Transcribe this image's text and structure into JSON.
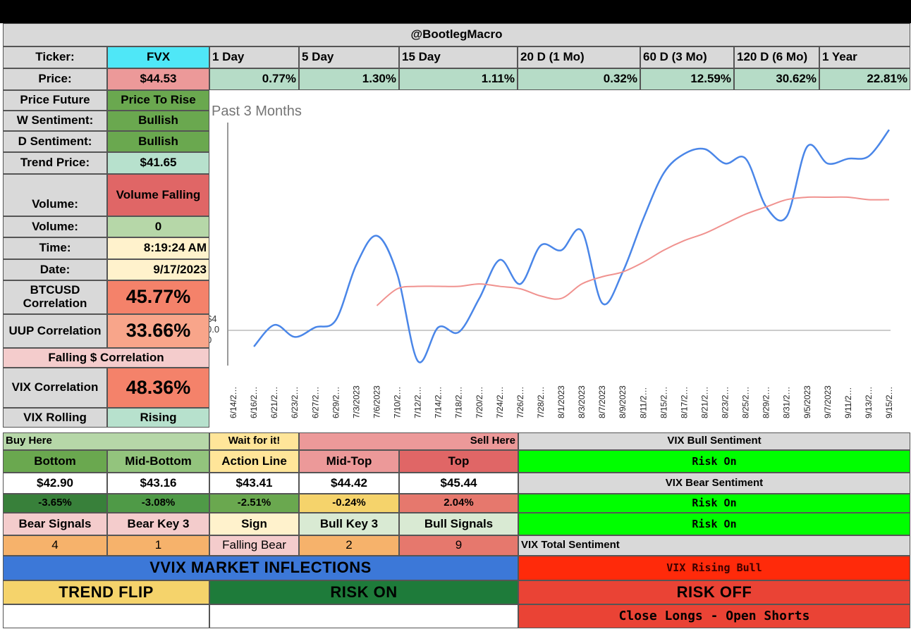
{
  "colors": {
    "grey": "#d9d9d9",
    "cyan": "#4fe7f7",
    "pink": "#ec9999",
    "lightgreen": "#b6dcc7",
    "green": "#6aa84f",
    "darkgreen": "#1e7b3a",
    "midgreen": "#38803a",
    "red": "#e06666",
    "salmon": "#f4826a",
    "lightsalmon": "#f8a58a",
    "lightpink": "#f4cccc",
    "mint": "#b7e1cd",
    "yellow": "#ffe599",
    "orange": "#f6b26b",
    "gold": "#f5d36b",
    "blue": "#3c78d8",
    "brightgreen": "#00ff00",
    "brightred": "#ff2a0a",
    "darkred": "#ea4335",
    "palegreen": "#d9ead3"
  },
  "header": {
    "handle": "@BootlegMacro"
  },
  "ticker": {
    "label": "Ticker:",
    "symbol": "FVX",
    "price_label": "Price:",
    "price": "$44.53",
    "periods": [
      "1 Day",
      "5 Day",
      "15 Day",
      "20 D (1 Mo)",
      "60 D (3 Mo)",
      "120 D (6 Mo)",
      "1 Year"
    ],
    "changes": [
      "0.77%",
      "1.30%",
      "1.11%",
      "0.32%",
      "12.59%",
      "30.62%",
      "22.81%"
    ]
  },
  "stats": {
    "price_future": {
      "label": "Price Future",
      "value": "Price To Rise"
    },
    "w_sentiment": {
      "label": "W Sentiment:",
      "value": "Bullish"
    },
    "d_sentiment": {
      "label": "D Sentiment:",
      "value": "Bullish"
    },
    "trend_price": {
      "label": "Trend Price:",
      "value": "$41.65"
    },
    "volume_trend": {
      "label": "Volume:",
      "value": "Volume Falling"
    },
    "volume": {
      "label": "Volume:",
      "value": "0"
    },
    "time": {
      "label": "Time:",
      "value": "8:19:24 AM"
    },
    "date": {
      "label": "Date:",
      "value": "9/17/2023"
    },
    "btc_corr": {
      "label": "BTCUSD Correlation",
      "value": "45.77%"
    },
    "uup_corr": {
      "label": "UUP Correlation",
      "value": "33.66%"
    },
    "falling_corr": {
      "label": "Falling $ Correlation"
    },
    "vix_corr": {
      "label": "VIX Correlation",
      "value": "48.36%"
    },
    "vix_rolling": {
      "label": "VIX Rolling",
      "value": "Rising"
    }
  },
  "levels": {
    "buy_here": "Buy Here",
    "wait": "Wait for it!",
    "sell_here": "Sell Here",
    "names": [
      "Bottom",
      "Mid-Bottom",
      "Action Line",
      "Mid-Top",
      "Top"
    ],
    "prices": [
      "$42.90",
      "$43.16",
      "$43.41",
      "$44.42",
      "$45.44"
    ],
    "pcts": [
      "-3.65%",
      "-3.08%",
      "-2.51%",
      "-0.24%",
      "2.04%"
    ]
  },
  "signals": {
    "labels": [
      "Bear Signals",
      "Bear Key 3",
      "Sign",
      "Bull Key 3",
      "Bull Signals"
    ],
    "values": [
      "4",
      "1",
      "Falling Bear",
      "2",
      "9"
    ]
  },
  "vix": {
    "bull_title": "VIX Bull Sentiment",
    "bull_value": "Risk On",
    "bear_title": "VIX Bear Sentiment",
    "bear_value1": "Risk On",
    "bear_value2": "Risk On",
    "total_title": "VIX Total Sentiment",
    "total_value": "VIX Rising Bull"
  },
  "inflections": {
    "title": "VVIX MARKET INFLECTIONS",
    "trend_flip": "TREND FLIP",
    "risk_on": "RISK ON",
    "risk_off": "RISK OFF",
    "risk_off_value": "Close Longs - Open Shorts"
  },
  "chart_data": {
    "type": "line",
    "title": "Past 3 Months",
    "y_tick_labels": [
      "$4",
      "0.0",
      "0"
    ],
    "x": [
      "6/14/2…",
      "6/16/2…",
      "6/21/2…",
      "6/23/2…",
      "6/27/2…",
      "6/29/2…",
      "7/3/2023",
      "7/6/2023",
      "7/10/2…",
      "7/12/2…",
      "7/14/2…",
      "7/18/2…",
      "7/20/2…",
      "7/24/2…",
      "7/26/2…",
      "7/28/2…",
      "8/1/2023",
      "8/3/2023",
      "8/7/2023",
      "8/9/2023",
      "8/11/2…",
      "8/15/2…",
      "8/17/2…",
      "8/21/2…",
      "8/23/2…",
      "8/25/2…",
      "8/29/2…",
      "8/31/2…",
      "9/5/2023",
      "9/7/2023",
      "9/11/2…",
      "9/13/2…",
      "9/15/2…"
    ],
    "series": [
      {
        "color": "#4a86e8",
        "values": [
          null,
          39.2,
          40.1,
          39.6,
          40.0,
          40.3,
          42.6,
          43.8,
          42.2,
          38.6,
          40.0,
          39.8,
          41.2,
          42.8,
          41.8,
          43.4,
          43.2,
          44.0,
          41.0,
          42.3,
          44.5,
          46.4,
          47.2,
          47.4,
          46.8,
          47.0,
          45.0,
          44.6,
          47.5,
          46.8,
          47.0,
          47.1,
          48.2
        ]
      },
      {
        "color": "#f0928f",
        "values": [
          null,
          null,
          null,
          null,
          null,
          null,
          null,
          40.9,
          41.6,
          41.7,
          41.7,
          41.7,
          41.8,
          41.7,
          41.6,
          41.3,
          41.2,
          41.8,
          42.1,
          42.3,
          42.7,
          43.2,
          43.6,
          43.9,
          44.3,
          44.7,
          45.0,
          45.3,
          45.4,
          45.4,
          45.4,
          45.3,
          45.3
        ]
      }
    ],
    "ylim": [
      38.5,
      48.5
    ],
    "grid": false
  }
}
